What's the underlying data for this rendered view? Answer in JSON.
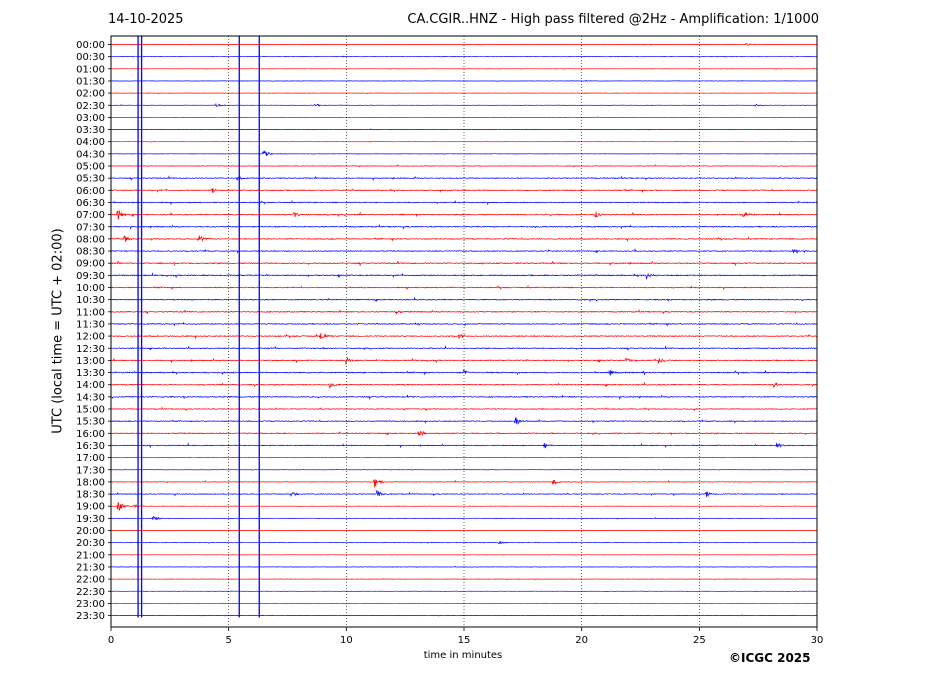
{
  "header": {
    "date": "14-10-2025",
    "title": "CA.CGIR..HNZ - High pass filtered @2Hz - Amplification: 1/1000"
  },
  "footer": {
    "copyright": "©ICGC 2025"
  },
  "chart_data": {
    "type": "line",
    "xlabel": "time in minutes",
    "ylabel": "UTC (local time = UTC + 02:00)",
    "xlim": [
      0,
      30
    ],
    "xticks": [
      0,
      5,
      10,
      15,
      20,
      25,
      30
    ],
    "grid_x": "dotted vertical at 5-minute intervals",
    "row_labels": [
      "00:00",
      "00:30",
      "01:00",
      "01:30",
      "02:00",
      "02:30",
      "03:00",
      "03:30",
      "04:00",
      "04:30",
      "05:00",
      "05:30",
      "06:00",
      "06:30",
      "07:00",
      "07:30",
      "08:00",
      "08:30",
      "09:00",
      "09:30",
      "10:00",
      "10:30",
      "11:00",
      "11:30",
      "12:00",
      "12:30",
      "13:00",
      "13:30",
      "14:00",
      "14:30",
      "15:00",
      "15:30",
      "16:00",
      "16:30",
      "17:00",
      "17:30",
      "18:00",
      "18:30",
      "19:00",
      "19:30",
      "20:00",
      "20:30",
      "21:00",
      "21:30",
      "22:00",
      "22:30",
      "23:00",
      "23:30"
    ],
    "row_colors": [
      "#ff0000",
      "#0000ff"
    ],
    "noise_level": [
      0.3,
      0.3,
      0.3,
      0.3,
      0.3,
      0.4,
      0.3,
      0.3,
      0.3,
      0.3,
      0.5,
      0.8,
      0.9,
      0.9,
      1.0,
      0.9,
      0.9,
      0.9,
      1.0,
      1.0,
      0.9,
      0.9,
      0.9,
      0.9,
      1.0,
      0.8,
      1.0,
      1.0,
      0.9,
      0.9,
      0.8,
      0.8,
      0.9,
      0.8,
      0.4,
      0.4,
      0.5,
      0.7,
      0.4,
      0.4,
      0.3,
      0.3,
      0.3,
      0.3,
      0.3,
      0.3,
      0.3,
      0.3
    ],
    "events": [
      {
        "row": 0,
        "t": 27.0,
        "amp": 1.5
      },
      {
        "row": 5,
        "t": 4.5,
        "amp": 2.0
      },
      {
        "row": 5,
        "t": 8.7,
        "amp": 2.0
      },
      {
        "row": 5,
        "t": 27.4,
        "amp": 1.5
      },
      {
        "row": 9,
        "t": 6.5,
        "amp": 4.0
      },
      {
        "row": 11,
        "t": 5.4,
        "amp": 2.5
      },
      {
        "row": 12,
        "t": 4.3,
        "amp": 2.5
      },
      {
        "row": 14,
        "t": 0.3,
        "amp": 6.0
      },
      {
        "row": 14,
        "t": 7.8,
        "amp": 3.5
      },
      {
        "row": 14,
        "t": 20.6,
        "amp": 3.0
      },
      {
        "row": 14,
        "t": 26.9,
        "amp": 3.0
      },
      {
        "row": 16,
        "t": 0.6,
        "amp": 4.0
      },
      {
        "row": 16,
        "t": 3.8,
        "amp": 3.5
      },
      {
        "row": 17,
        "t": 29.0,
        "amp": 3.0
      },
      {
        "row": 19,
        "t": 22.8,
        "amp": 4.0
      },
      {
        "row": 22,
        "t": 12.1,
        "amp": 2.5
      },
      {
        "row": 24,
        "t": 8.9,
        "amp": 4.0
      },
      {
        "row": 24,
        "t": 14.8,
        "amp": 3.0
      },
      {
        "row": 26,
        "t": 10.0,
        "amp": 4.5
      },
      {
        "row": 26,
        "t": 21.9,
        "amp": 3.0
      },
      {
        "row": 26,
        "t": 23.3,
        "amp": 3.0
      },
      {
        "row": 27,
        "t": 15.0,
        "amp": 3.5
      },
      {
        "row": 27,
        "t": 21.2,
        "amp": 3.5
      },
      {
        "row": 28,
        "t": 9.3,
        "amp": 4.0
      },
      {
        "row": 28,
        "t": 28.2,
        "amp": 3.0
      },
      {
        "row": 31,
        "t": 17.2,
        "amp": 3.0
      },
      {
        "row": 32,
        "t": 13.1,
        "amp": 3.0
      },
      {
        "row": 33,
        "t": 18.4,
        "amp": 3.0
      },
      {
        "row": 33,
        "t": 28.3,
        "amp": 3.0
      },
      {
        "row": 36,
        "t": 11.2,
        "amp": 6.0
      },
      {
        "row": 36,
        "t": 18.8,
        "amp": 3.0
      },
      {
        "row": 37,
        "t": 7.7,
        "amp": 3.0
      },
      {
        "row": 37,
        "t": 11.3,
        "amp": 4.5
      },
      {
        "row": 37,
        "t": 25.3,
        "amp": 3.0
      },
      {
        "row": 38,
        "t": 0.3,
        "amp": 6.0
      },
      {
        "row": 38,
        "t": 1.0,
        "amp": 2.0
      },
      {
        "row": 39,
        "t": 1.8,
        "amp": 3.0
      },
      {
        "row": 41,
        "t": 16.5,
        "amp": 1.5
      }
    ],
    "spikes": [
      {
        "t": 1.15,
        "row_start": 0,
        "row_end": 47
      },
      {
        "t": 1.3,
        "row_start": 0,
        "row_end": 47
      },
      {
        "t": 5.45,
        "row_start": 0,
        "row_end": 47
      },
      {
        "t": 6.3,
        "row_start": 0,
        "row_end": 47
      }
    ]
  }
}
